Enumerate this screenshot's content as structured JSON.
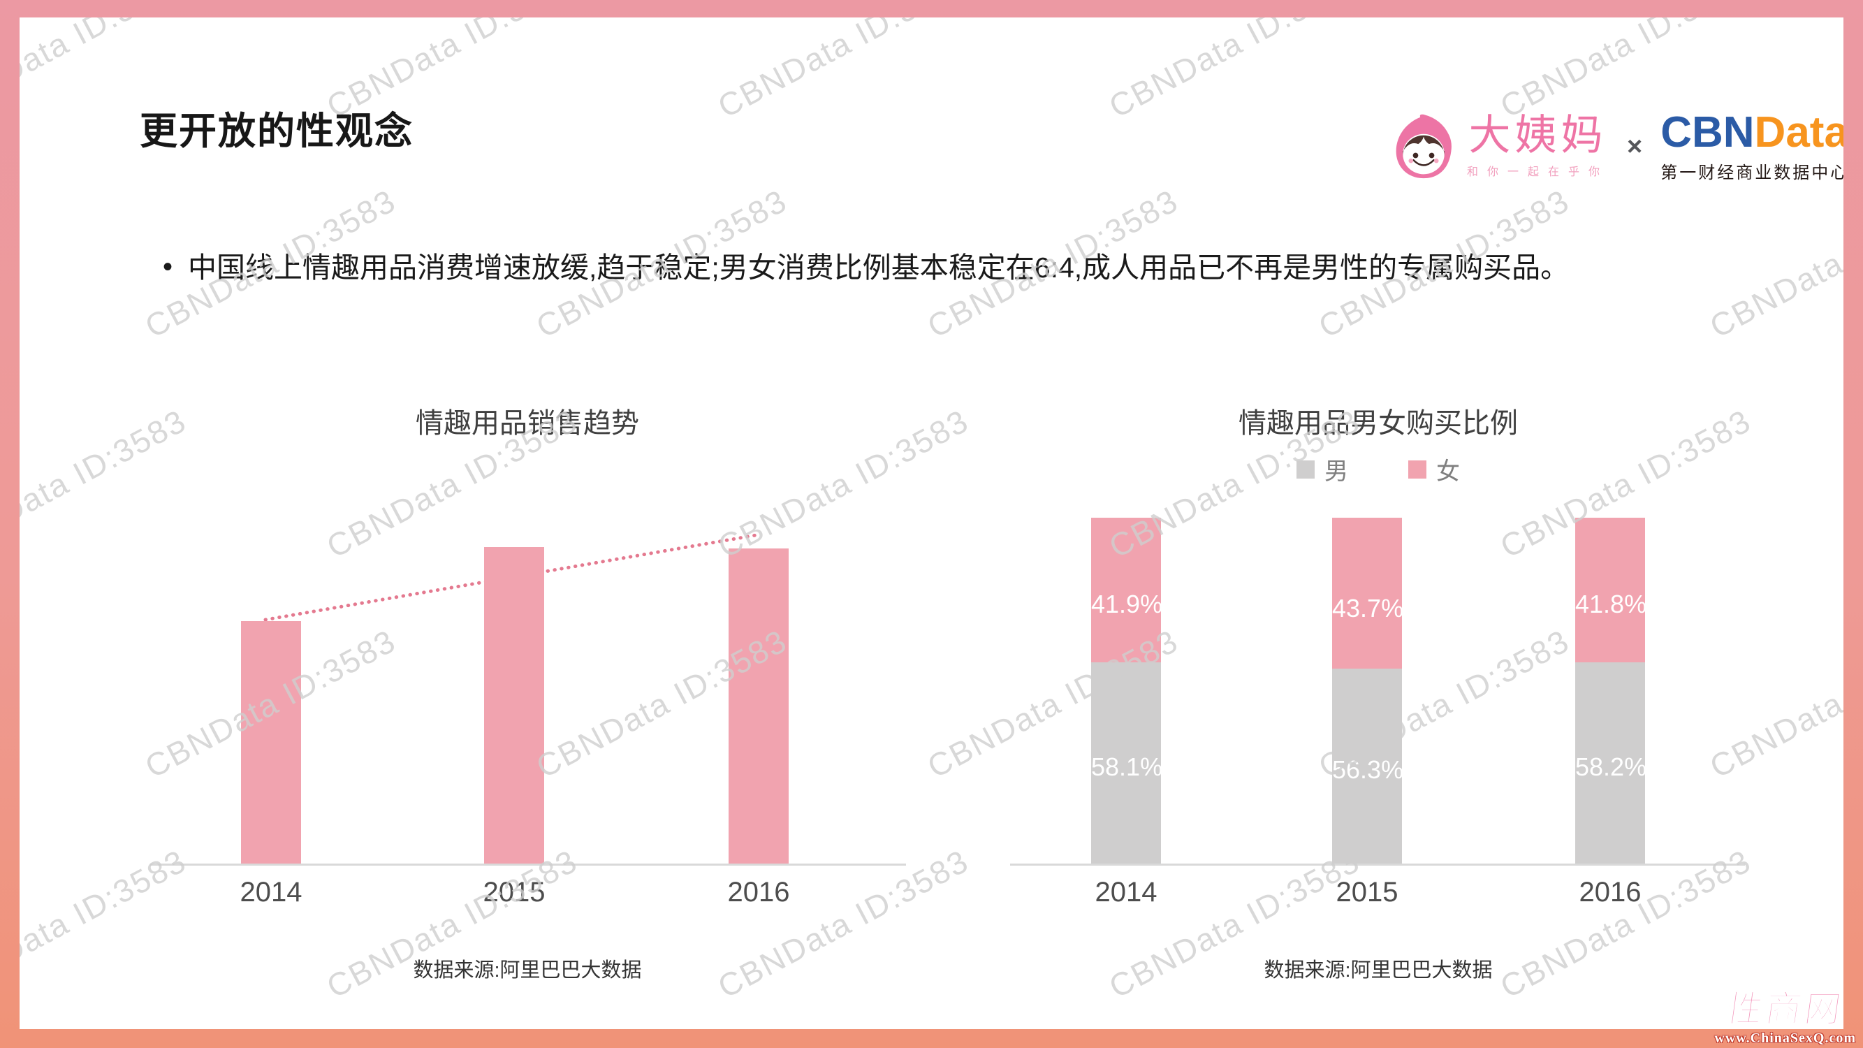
{
  "page": {
    "watermark_text": "CBNData ID:3583"
  },
  "header": {
    "title": "更开放的性观念",
    "partners": {
      "dayima_name": "大姨妈",
      "dayima_tagline": "和你一起在乎你",
      "cross": "×",
      "cbn": "CBN",
      "data": "Data",
      "cbn_subtitle": "第一财经商业数据中心"
    }
  },
  "bullet": {
    "marker": "•",
    "text": "中国线上情趣用品消费增速放缓,趋于稳定;男女消费比例基本稳定在6:4,成人用品已不再是男性的专属购买品。"
  },
  "chart_data": [
    {
      "type": "bar",
      "title": "情趣用品销售趋势",
      "categories": [
        "2014",
        "2015",
        "2016"
      ],
      "values_relative": [
        0.765,
        1.0,
        0.996
      ],
      "value_labels_shown": false,
      "bar_color": "#F1A3AF",
      "trendline": {
        "shown": true,
        "style": "dotted",
        "color": "#E4798F",
        "direction": "rising"
      },
      "grid": false,
      "source": "数据来源:阿里巴巴大数据"
    },
    {
      "type": "stacked-bar",
      "title": "情趣用品男女购买比例",
      "categories": [
        "2014",
        "2015",
        "2016"
      ],
      "ylim": [
        0,
        100
      ],
      "legend_position": "top",
      "series": [
        {
          "name": "男",
          "color": "#CFCECE",
          "values": [
            58.1,
            56.3,
            58.2
          ]
        },
        {
          "name": "女",
          "color": "#F1A3AF",
          "values": [
            41.9,
            43.7,
            41.8
          ]
        }
      ],
      "grid": false,
      "source": "数据来源:阿里巴巴大数据"
    }
  ],
  "corner_logo": {
    "name": "性商网",
    "url": "www.ChinaSexQ.com"
  }
}
